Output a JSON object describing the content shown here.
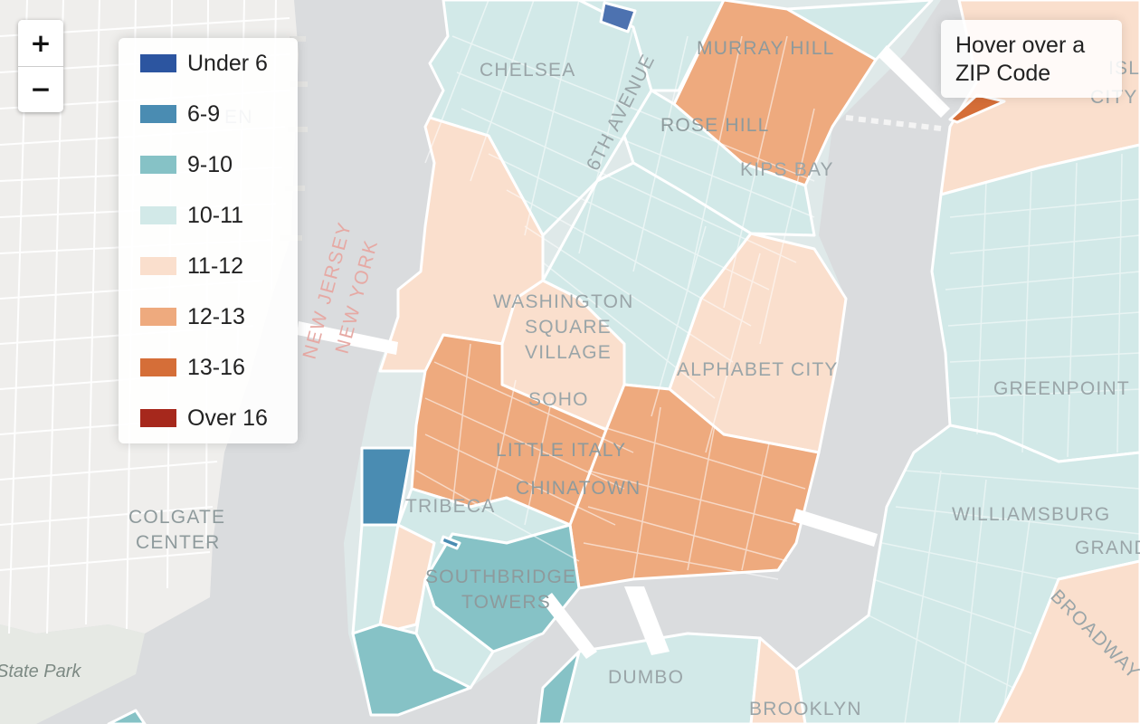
{
  "zoom_control": {
    "zoom_in_label": "+",
    "zoom_out_label": "−"
  },
  "legend": {
    "items": [
      {
        "label": "Under 6",
        "color": "#2c55a0"
      },
      {
        "label": "6-9",
        "color": "#4a8cb2"
      },
      {
        "label": "9-10",
        "color": "#86c2c6"
      },
      {
        "label": "10-11",
        "color": "#d2e9e8"
      },
      {
        "label": "11-12",
        "color": "#fadfcd"
      },
      {
        "label": "12-13",
        "color": "#eeaa7e"
      },
      {
        "label": "13-16",
        "color": "#d56e38"
      },
      {
        "label": "Over 16",
        "color": "#a6281c"
      }
    ]
  },
  "info_box": {
    "text": "Hover over a\nZIP Code"
  },
  "map_labels": {
    "chelsea": "CHELSEA",
    "murray_hill": "MURRAY HILL",
    "rose_hill": "ROSE HILL",
    "kips_bay": "KIPS BAY",
    "sixth_avenue": "6TH AVENUE",
    "washington": "WASHINGTON",
    "square": "SQUARE",
    "village": "VILLAGE",
    "soho": "SOHO",
    "little_italy": "LITTLE ITALY",
    "chinatown": "CHINATOWN",
    "alphabet_city": "ALPHABET CITY",
    "tribeca": "TRIBECA",
    "southbridge": "SOUTHBRIDGE",
    "towers": "TOWERS",
    "dumbo": "DUMBO",
    "brooklyn": "BROOKLYN",
    "greenpoint": "GREENPOINT",
    "williamsburg": "WILLIAMSBURG",
    "grand_st": "GRAND ST",
    "broadway": "BROADWAY",
    "colgate": "COLGATE",
    "center": "CENTER",
    "state_park": "State Park",
    "new_jersey": "NEW JERSEY",
    "new_york": "NEW YORK",
    "island_city_edge": "ISLAND",
    "city_edge": "CITY",
    "hoboken_edge": "EN"
  }
}
